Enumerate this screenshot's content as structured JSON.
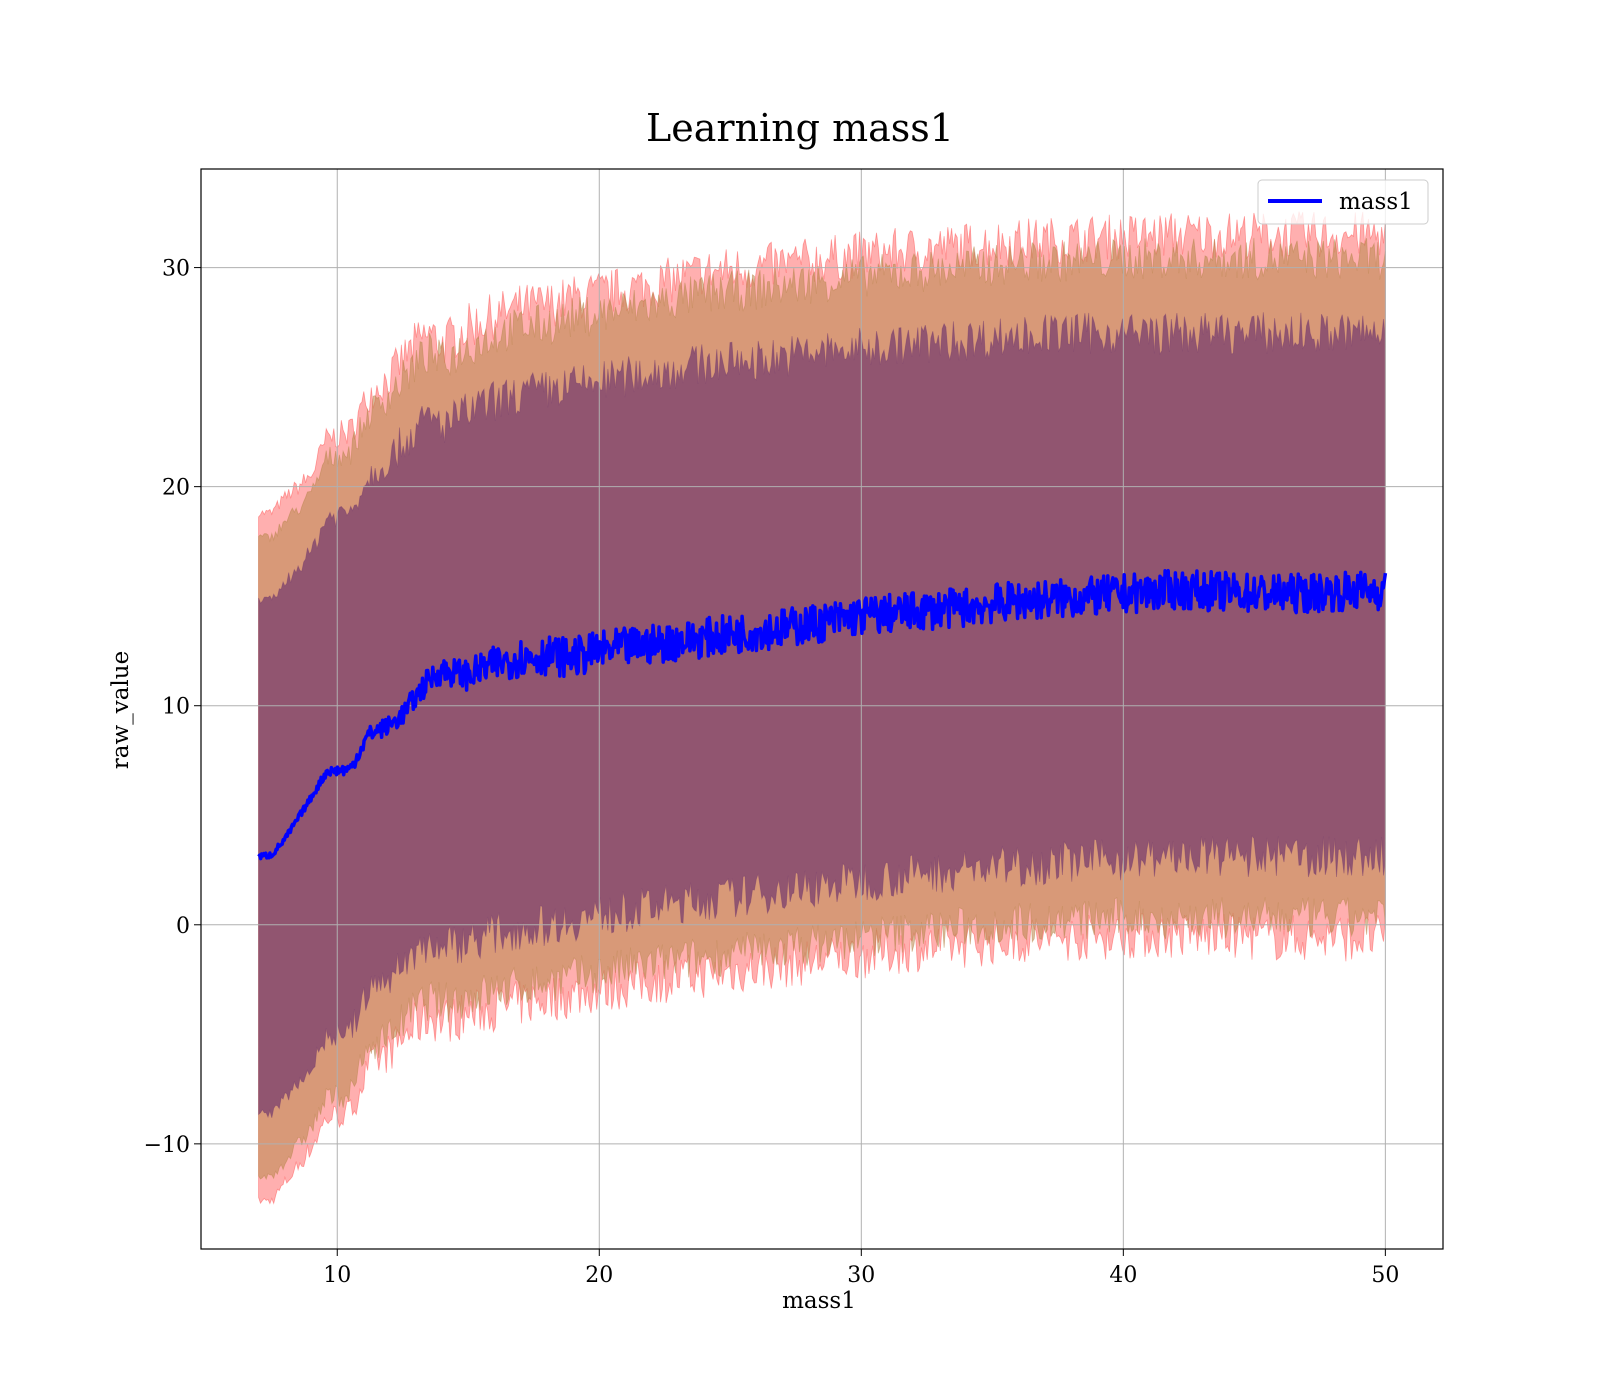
{
  "chart_data": {
    "type": "line",
    "title": "Learning mass1",
    "xlabel": "mass1",
    "ylabel": "raw_value",
    "xlim": [
      4.8,
      52.2
    ],
    "ylim": [
      -14.8,
      34.5
    ],
    "xticks": [
      10,
      20,
      30,
      40,
      50
    ],
    "yticks": [
      -10,
      0,
      10,
      20,
      30
    ],
    "xtick_labels": [
      "10",
      "20",
      "30",
      "40",
      "50"
    ],
    "ytick_labels": [
      "−10",
      "0",
      "10",
      "20",
      "30"
    ],
    "grid": true,
    "legend_position": "top-right",
    "colors": {
      "line": "#0000ff",
      "band_outer": "#ff4d4d",
      "band_middle": "#b8864b",
      "band_inner": "#7a3f6e",
      "grid": "#b0b0b0"
    },
    "series": [
      {
        "name": "mass1",
        "x": [
          7.0,
          7.5,
          8.0,
          9.0,
          9.6,
          10.5,
          11.2,
          12.0,
          12.5,
          13.0,
          13.5,
          14.0,
          15.0,
          16.0,
          17.0,
          18.0,
          19.0,
          20.0,
          22.0,
          24.0,
          26.0,
          28.0,
          30.0,
          32.0,
          34.0,
          36.0,
          38.0,
          40.0,
          42.0,
          44.0,
          46.0,
          48.0,
          50.0
        ],
        "y": [
          3.1,
          3.2,
          3.9,
          5.8,
          7.0,
          7.1,
          8.7,
          9.1,
          9.6,
          10.4,
          11.2,
          11.6,
          11.4,
          11.9,
          12.2,
          12.3,
          12.2,
          12.5,
          12.8,
          13.1,
          13.4,
          13.7,
          14.1,
          14.3,
          14.5,
          14.8,
          14.9,
          15.1,
          15.3,
          15.2,
          15.1,
          15.2,
          15.3
        ]
      }
    ],
    "bands": [
      {
        "level": "outer",
        "upper": [
          18.8,
          18.8,
          19.5,
          20.5,
          22.2,
          22.5,
          24.2,
          25.0,
          25.8,
          26.5,
          27.0,
          26.5,
          27.3,
          27.8,
          28.2,
          28.3,
          28.6,
          28.8,
          29.2,
          29.8,
          30.0,
          30.3,
          30.6,
          30.8,
          31.0,
          31.2,
          31.3,
          31.4,
          31.5,
          31.5,
          31.5,
          31.5,
          31.5
        ],
        "lower": [
          -12.6,
          -12.6,
          -11.8,
          -10.2,
          -8.8,
          -8.6,
          -6.5,
          -5.8,
          -5.2,
          -4.6,
          -4.2,
          -4.4,
          -4.1,
          -3.8,
          -3.6,
          -3.4,
          -3.2,
          -3.0,
          -2.6,
          -2.3,
          -2.0,
          -1.7,
          -1.4,
          -1.1,
          -0.9,
          -0.7,
          -0.6,
          -0.5,
          -0.5,
          -0.5,
          -0.6,
          -0.6,
          -0.6
        ]
      },
      {
        "level": "middle",
        "upper": [
          17.7,
          17.7,
          18.4,
          19.6,
          21.3,
          21.6,
          23.3,
          24.2,
          24.9,
          25.6,
          26.1,
          25.7,
          26.4,
          26.9,
          27.3,
          27.4,
          27.7,
          27.9,
          28.3,
          28.8,
          29.0,
          29.3,
          29.6,
          29.8,
          30.0,
          30.2,
          30.3,
          30.4,
          30.4,
          30.4,
          30.4,
          30.4,
          30.4
        ],
        "lower": [
          -11.5,
          -11.5,
          -10.8,
          -9.3,
          -7.9,
          -7.7,
          -5.6,
          -5.0,
          -4.4,
          -3.8,
          -3.4,
          -3.6,
          -3.3,
          -3.0,
          -2.8,
          -2.6,
          -2.4,
          -2.2,
          -1.8,
          -1.5,
          -1.2,
          -0.9,
          -0.6,
          -0.3,
          -0.1,
          0.1,
          0.2,
          0.3,
          0.3,
          0.3,
          0.3,
          0.3,
          0.3
        ]
      },
      {
        "level": "inner",
        "upper": [
          14.8,
          14.8,
          15.6,
          17.0,
          18.6,
          18.9,
          20.5,
          21.3,
          22.0,
          22.6,
          23.1,
          22.8,
          23.4,
          23.9,
          24.2,
          24.4,
          24.6,
          24.8,
          25.2,
          25.6,
          25.8,
          26.1,
          26.3,
          26.5,
          26.7,
          26.9,
          27.0,
          27.0,
          27.0,
          27.0,
          27.0,
          27.0,
          27.0
        ],
        "lower": [
          -8.6,
          -8.6,
          -7.9,
          -6.5,
          -5.1,
          -4.9,
          -3.0,
          -2.4,
          -1.8,
          -1.2,
          -0.8,
          -1.0,
          -0.7,
          -0.4,
          -0.2,
          0.0,
          0.2,
          0.4,
          0.8,
          1.1,
          1.4,
          1.7,
          2.0,
          2.3,
          2.5,
          2.7,
          2.9,
          3.0,
          3.1,
          3.1,
          3.1,
          3.1,
          3.1
        ]
      }
    ]
  }
}
